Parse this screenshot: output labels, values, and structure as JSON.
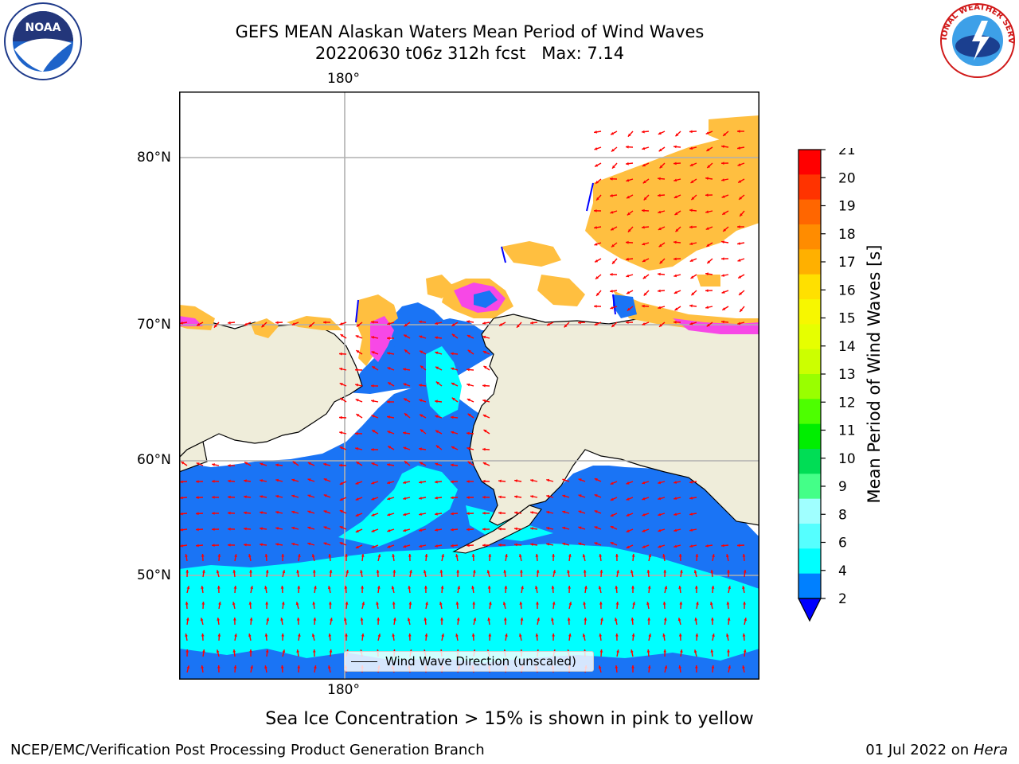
{
  "title": {
    "line1": "GEFS MEAN Alaskan Waters Mean Period of Wind Waves",
    "line2": "20220630 t06z 312h fcst   Max: 7.14"
  },
  "map": {
    "lon_top_label": "180°",
    "lon_bottom_label": "180°",
    "lat_labels": [
      "80°N",
      "70°N",
      "60°N",
      "50°N"
    ],
    "colors": {
      "land": "#efedda",
      "deep_blue": "#1a74f5",
      "cyan": "#00ffff",
      "light_cyan": "#40f5f5",
      "ice_pink": "#f748e6",
      "ice_orange": "#ffbf40",
      "arrow": "#ff0000",
      "grid": "#b0b0b0"
    },
    "legend_label": "Wind Wave Direction (unscaled)"
  },
  "colorbar": {
    "label": "Mean Period of Wind Waves [s]",
    "ticks": [
      "21",
      "20",
      "19",
      "18",
      "17",
      "16",
      "15",
      "14",
      "13",
      "12",
      "11",
      "10",
      "9",
      "8",
      "6",
      "4",
      "2"
    ],
    "colors_top_to_bottom": [
      "#ff0000",
      "#ff3300",
      "#ff6600",
      "#ff8c00",
      "#ffb000",
      "#ffe000",
      "#f7f700",
      "#e6ff00",
      "#ccff00",
      "#99ff00",
      "#4dff00",
      "#00ee00",
      "#00dd55",
      "#44ff88",
      "#a0ffff",
      "#55ffff",
      "#00ffff",
      "#0080ff"
    ],
    "extend_color": "#0000ff"
  },
  "note": "Sea Ice Concentration > 15% is shown in pink to yellow",
  "footer": {
    "left": "NCEP/EMC/Verification Post Processing Product Generation Branch",
    "right_prefix": "01 Jul 2022 on ",
    "right_machine": "Hera"
  },
  "logos": {
    "noaa_text": "NOAA",
    "nws_text": "NATIONAL WEATHER SERVICE"
  }
}
